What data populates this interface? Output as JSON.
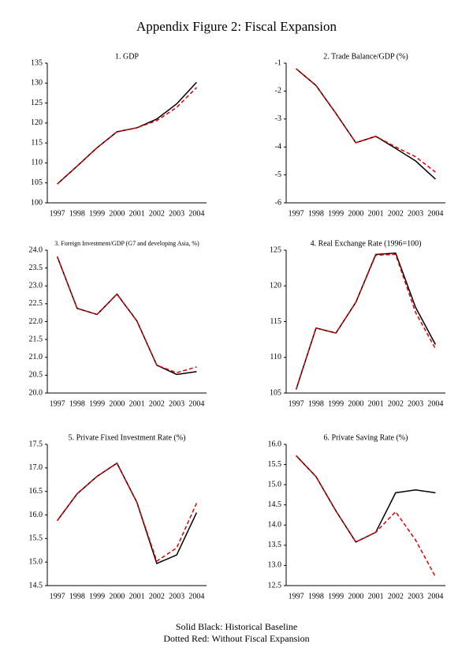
{
  "title": "Appendix Figure 2: Fiscal Expansion",
  "notes": [
    "Solid Black: Historical Baseline",
    "Dotted Red: Without Fiscal Expansion"
  ],
  "chart_data": [
    {
      "type": "line",
      "title": "1. GDP",
      "categories": [
        "1997",
        "1998",
        "1999",
        "2000",
        "2001",
        "2002",
        "2003",
        "2004"
      ],
      "series": [
        {
          "color": "#000000",
          "style": "solid",
          "values": [
            104.7,
            109.2,
            113.8,
            117.8,
            118.8,
            121.0,
            124.8,
            130.2
          ]
        },
        {
          "color": "#e00000",
          "style": "dashed",
          "values": [
            104.7,
            109.2,
            113.8,
            117.8,
            118.8,
            120.6,
            123.9,
            128.9
          ]
        }
      ],
      "ylim": [
        100,
        135
      ],
      "yticks": [
        100,
        105,
        110,
        115,
        120,
        125,
        130,
        135
      ]
    },
    {
      "type": "line",
      "title": "2. Trade Balance/GDP (%)",
      "categories": [
        "1997",
        "1998",
        "1999",
        "2000",
        "2001",
        "2002",
        "2003",
        "2004"
      ],
      "series": [
        {
          "color": "#000000",
          "style": "solid",
          "values": [
            -1.2,
            -1.8,
            -2.8,
            -3.85,
            -3.62,
            -4.05,
            -4.5,
            -5.15
          ]
        },
        {
          "color": "#e00000",
          "style": "dashed",
          "values": [
            -1.2,
            -1.8,
            -2.8,
            -3.85,
            -3.62,
            -4.0,
            -4.35,
            -4.9
          ]
        }
      ],
      "ylim": [
        -6,
        -1
      ],
      "yticks": [
        -6,
        -5,
        -4,
        -3,
        -2,
        -1
      ]
    },
    {
      "type": "line",
      "title": "3. Foreign Investment/GDP (G7 and developing Asia, %)",
      "title_size": "small",
      "categories": [
        "1997",
        "1998",
        "1999",
        "2000",
        "2001",
        "2002",
        "2003",
        "2004"
      ],
      "series": [
        {
          "color": "#000000",
          "style": "solid",
          "values": [
            23.82,
            22.37,
            22.2,
            22.77,
            22.02,
            20.78,
            20.52,
            20.6
          ]
        },
        {
          "color": "#e00000",
          "style": "dashed",
          "values": [
            23.82,
            22.37,
            22.2,
            22.77,
            22.02,
            20.78,
            20.57,
            20.73
          ]
        }
      ],
      "ylim": [
        20,
        24
      ],
      "yticks": [
        {
          "value": 20,
          "label": "20.0"
        },
        20.5,
        {
          "value": 21,
          "label": "21.0"
        },
        21.5,
        {
          "value": 22,
          "label": "22.0"
        },
        22.5,
        {
          "value": 23,
          "label": "23.0"
        },
        23.5,
        {
          "value": 24,
          "label": "24.0"
        }
      ]
    },
    {
      "type": "line",
      "title": "4. Real Exchange Rate (1996=100)",
      "categories": [
        "1997",
        "1998",
        "1999",
        "2000",
        "2001",
        "2002",
        "2003",
        "2004"
      ],
      "series": [
        {
          "color": "#000000",
          "style": "solid",
          "values": [
            105.5,
            114.1,
            113.4,
            117.7,
            124.4,
            124.6,
            117.0,
            111.8
          ]
        },
        {
          "color": "#e00000",
          "style": "dashed",
          "values": [
            105.5,
            114.1,
            113.4,
            117.7,
            124.3,
            124.4,
            116.3,
            111.2
          ]
        }
      ],
      "ylim": [
        105,
        125
      ],
      "yticks": [
        105,
        110,
        115,
        120,
        125
      ]
    },
    {
      "type": "line",
      "title": "5. Private Fixed Investment Rate (%)",
      "categories": [
        "1997",
        "1998",
        "1999",
        "2000",
        "2001",
        "2002",
        "2003",
        "2004"
      ],
      "series": [
        {
          "color": "#000000",
          "style": "solid",
          "values": [
            15.88,
            16.45,
            16.82,
            17.1,
            16.27,
            14.97,
            15.15,
            16.05
          ]
        },
        {
          "color": "#e00000",
          "style": "dashed",
          "values": [
            15.88,
            16.45,
            16.82,
            17.1,
            16.27,
            15.02,
            15.3,
            16.25
          ]
        }
      ],
      "ylim": [
        14.5,
        17.5
      ],
      "yticks": [
        14.5,
        {
          "value": 15,
          "label": "15.0"
        },
        15.5,
        {
          "value": 16,
          "label": "16.0"
        },
        16.5,
        {
          "value": 17,
          "label": "17.0"
        },
        17.5
      ]
    },
    {
      "type": "line",
      "title": "6. Private Saving Rate (%)",
      "categories": [
        "1997",
        "1998",
        "1999",
        "2000",
        "2001",
        "2002",
        "2003",
        "2004"
      ],
      "series": [
        {
          "color": "#000000",
          "style": "solid",
          "values": [
            15.72,
            15.2,
            14.35,
            13.58,
            13.82,
            14.8,
            14.87,
            14.8
          ]
        },
        {
          "color": "#e00000",
          "style": "dashed",
          "values": [
            15.72,
            15.2,
            14.35,
            13.58,
            13.82,
            14.33,
            13.63,
            12.72
          ]
        }
      ],
      "ylim": [
        12.5,
        16
      ],
      "yticks": [
        12.5,
        {
          "value": 13,
          "label": "13.0"
        },
        13.5,
        {
          "value": 14,
          "label": "14.0"
        },
        14.5,
        {
          "value": 15,
          "label": "15.0"
        },
        15.5,
        {
          "value": 16,
          "label": "16.0"
        }
      ]
    }
  ]
}
